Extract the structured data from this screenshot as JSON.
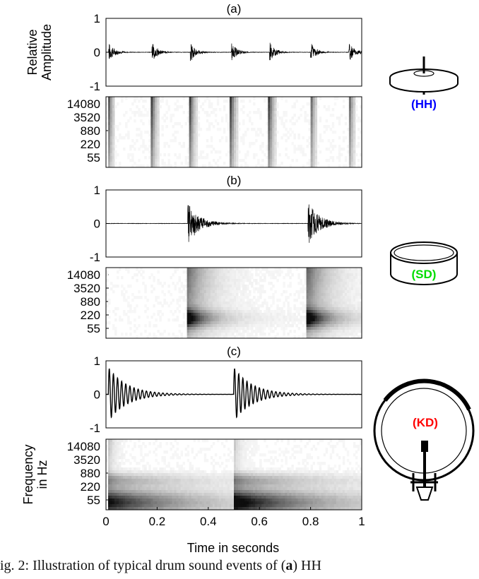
{
  "caption": {
    "prefix": "ig. 2: Illustration of typical drum sound events of (",
    "bold": "a",
    "suffix": ") HH"
  },
  "xlabel": "Time in seconds",
  "x_ticks": [
    "0",
    "0.2",
    "0.4",
    "0.6",
    "0.8",
    "1"
  ],
  "colors": {
    "hh": "#0000ff",
    "sd": "#00dd00",
    "kd": "#ff0000",
    "wave": "#000000"
  },
  "chart_data": [
    {
      "type": "line",
      "panel_label": "(a)",
      "ylabel": [
        "Relative",
        "Amplitude"
      ],
      "xlim": [
        0,
        1
      ],
      "ylim": [
        -1,
        1
      ],
      "y_ticks": [
        "1",
        "0",
        "-1"
      ],
      "onsets": [
        0.01,
        0.18,
        0.33,
        0.49,
        0.64,
        0.8,
        0.95
      ],
      "peak_amplitude": 0.3,
      "instrument": "(HH)",
      "instrument_icon": "hi-hat-cymbal-icon"
    },
    {
      "type": "heatmap",
      "panel_label": "",
      "ylabel": [],
      "xlim": [
        0,
        1
      ],
      "y_ticks": [
        "14080",
        "3520",
        "880",
        "220",
        "55"
      ],
      "onsets": [
        0.01,
        0.18,
        0.33,
        0.49,
        0.64,
        0.8,
        0.95
      ],
      "energy": "high-frequency, short"
    },
    {
      "type": "line",
      "panel_label": "(b)",
      "ylabel": [],
      "xlim": [
        0,
        1
      ],
      "ylim": [
        -1,
        1
      ],
      "y_ticks": [
        "1",
        "0",
        "-1"
      ],
      "onsets": [
        0.32,
        0.79
      ],
      "peak_amplitude": 0.65,
      "instrument": "(SD)",
      "instrument_icon": "snare-drum-icon"
    },
    {
      "type": "heatmap",
      "panel_label": "",
      "ylabel": [],
      "xlim": [
        0,
        1
      ],
      "y_ticks": [
        "14080",
        "3520",
        "880",
        "220",
        "55"
      ],
      "onsets": [
        0.32,
        0.79
      ],
      "energy": "broadband, mid-heavy"
    },
    {
      "type": "line",
      "panel_label": "(c)",
      "ylabel": [],
      "xlim": [
        0,
        1
      ],
      "ylim": [
        -1,
        1
      ],
      "y_ticks": [
        "1",
        "0",
        "-1"
      ],
      "onsets": [
        0.01,
        0.5
      ],
      "peak_amplitude": 0.8,
      "instrument": "(KD)",
      "instrument_icon": "kick-drum-icon"
    },
    {
      "type": "heatmap",
      "panel_label": "",
      "ylabel": [
        "Frequency",
        "in Hz"
      ],
      "xlim": [
        0,
        1
      ],
      "y_ticks": [
        "14080",
        "3520",
        "880",
        "220",
        "55"
      ],
      "onsets": [
        0.01,
        0.5
      ],
      "energy": "low-frequency, long"
    }
  ]
}
